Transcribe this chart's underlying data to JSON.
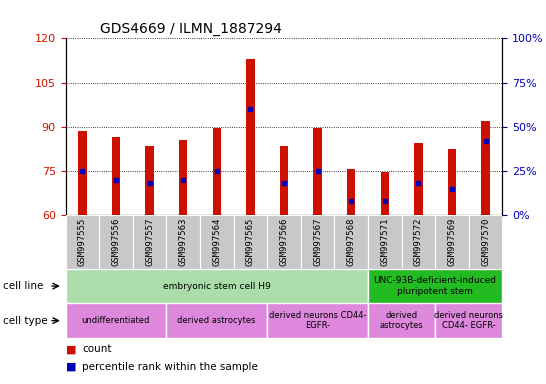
{
  "title": "GDS4669 / ILMN_1887294",
  "samples": [
    "GSM997555",
    "GSM997556",
    "GSM997557",
    "GSM997563",
    "GSM997564",
    "GSM997565",
    "GSM997566",
    "GSM997567",
    "GSM997568",
    "GSM997571",
    "GSM997572",
    "GSM997569",
    "GSM997570"
  ],
  "counts": [
    88.5,
    86.5,
    83.5,
    85.5,
    89.5,
    113.0,
    83.5,
    89.5,
    75.5,
    74.5,
    84.5,
    82.5,
    92.0
  ],
  "percentiles": [
    25,
    20,
    18,
    20,
    25,
    60,
    18,
    25,
    8,
    8,
    18,
    15,
    42
  ],
  "ylim_left": [
    60,
    120
  ],
  "ylim_right": [
    0,
    100
  ],
  "yticks_left": [
    60,
    75,
    90,
    105,
    120
  ],
  "yticks_right": [
    0,
    25,
    50,
    75,
    100
  ],
  "bar_color": "#cc1100",
  "dot_color": "#0000bb",
  "bar_width": 0.25,
  "title_fontsize": 10,
  "tick_label_color_left": "#cc1100",
  "tick_label_color_right": "#0000bb",
  "cell_line_groups": [
    {
      "label": "embryonic stem cell H9",
      "start": 0,
      "end": 9,
      "color": "#aaddaa"
    },
    {
      "label": "UNC-93B-deficient-induced\npluripotent stem",
      "start": 9,
      "end": 13,
      "color": "#22bb22"
    }
  ],
  "cell_type_groups": [
    {
      "label": "undifferentiated",
      "start": 0,
      "end": 3,
      "color": "#dd88dd"
    },
    {
      "label": "derived astrocytes",
      "start": 3,
      "end": 6,
      "color": "#dd88dd"
    },
    {
      "label": "derived neurons CD44-\nEGFR-",
      "start": 6,
      "end": 9,
      "color": "#dd88dd"
    },
    {
      "label": "derived\nastrocytes",
      "start": 9,
      "end": 11,
      "color": "#dd88dd"
    },
    {
      "label": "derived neurons\nCD44- EGFR-",
      "start": 11,
      "end": 13,
      "color": "#dd88dd"
    }
  ],
  "legend_items": [
    {
      "color": "#cc1100",
      "label": "count"
    },
    {
      "color": "#0000bb",
      "label": "percentile rank within the sample"
    }
  ]
}
